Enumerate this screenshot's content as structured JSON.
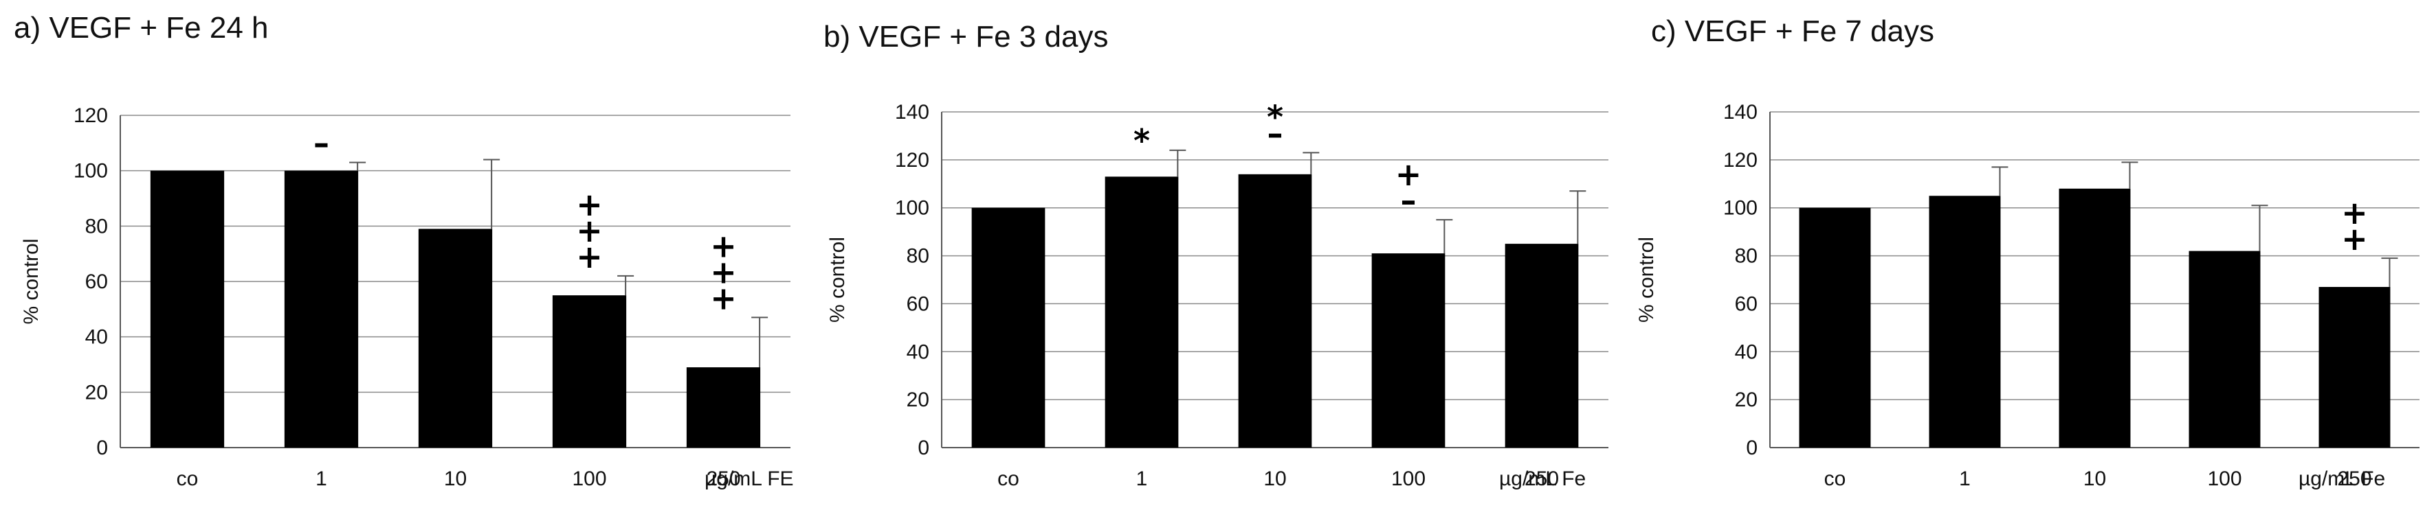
{
  "chart_data": [
    {
      "type": "bar",
      "title": "a) VEGF + Fe 24 h",
      "ylabel": "% control",
      "unit_label": "µg/mL FE",
      "ylim": [
        0,
        120
      ],
      "yticks": [
        0,
        20,
        40,
        60,
        80,
        100,
        120
      ],
      "grid": true,
      "categories": [
        "co",
        "1",
        "10",
        "100",
        "250"
      ],
      "values": [
        100,
        100,
        79,
        55,
        29
      ],
      "error_upper": [
        100,
        103,
        104,
        62,
        47
      ],
      "annotations": [
        "",
        "–",
        "",
        "+\n+\n+",
        "+\n+\n+"
      ]
    },
    {
      "type": "bar",
      "title": "b) VEGF + Fe 3 days",
      "ylabel": "% control",
      "unit_label": "µg/mL Fe",
      "ylim": [
        0,
        140
      ],
      "yticks": [
        0,
        20,
        40,
        60,
        80,
        100,
        120,
        140
      ],
      "grid": true,
      "categories": [
        "co",
        "1",
        "10",
        "100",
        "250"
      ],
      "values": [
        100,
        113,
        114,
        81,
        85
      ],
      "error_upper": [
        100,
        124,
        123,
        95,
        107
      ],
      "annotations": [
        "",
        "*",
        "*\n–",
        "+\n–",
        ""
      ]
    },
    {
      "type": "bar",
      "title": "c) VEGF + Fe 7 days",
      "ylabel": "% control",
      "unit_label": "µg/mL Fe",
      "ylim": [
        0,
        140
      ],
      "yticks": [
        0,
        20,
        40,
        60,
        80,
        100,
        120,
        140
      ],
      "grid": true,
      "categories": [
        "co",
        "1",
        "10",
        "100",
        "250"
      ],
      "values": [
        100,
        105,
        108,
        82,
        67
      ],
      "error_upper": [
        100,
        117,
        119,
        101,
        79
      ],
      "annotations": [
        "",
        "",
        "",
        "",
        "+\n+"
      ]
    }
  ]
}
